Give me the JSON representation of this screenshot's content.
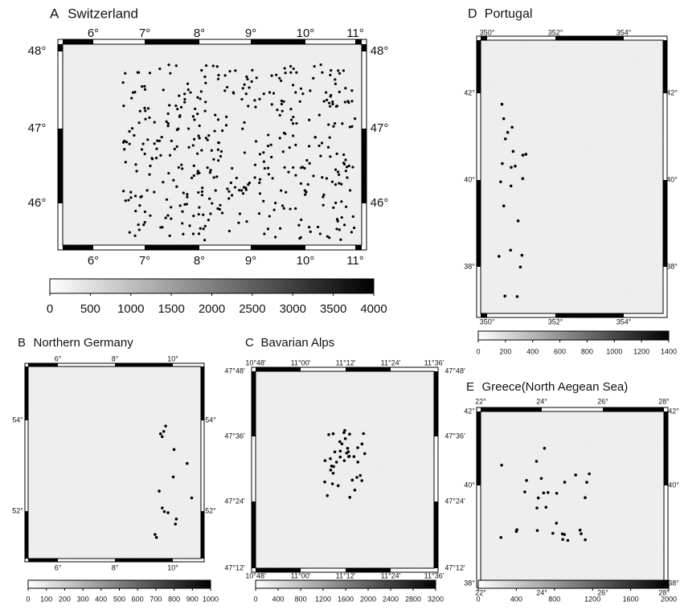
{
  "panels": [
    {
      "label": "A",
      "title": "Switzerland",
      "xticks": [
        "6°",
        "7°",
        "8°",
        "9°",
        "10°",
        "11°"
      ],
      "yticks": [
        "48°",
        "47°",
        "46°"
      ],
      "colorbar": [
        0,
        500,
        1000,
        1500,
        2000,
        2500,
        3000,
        3500,
        4000
      ]
    },
    {
      "label": "D",
      "title": "Portugal",
      "xticks": [
        "350°",
        "352°",
        "354°"
      ],
      "yticks": [
        "42°",
        "40°",
        "38°"
      ],
      "colorbar": [
        0,
        200,
        400,
        600,
        800,
        1000,
        1200,
        1400
      ]
    },
    {
      "label": "B",
      "title": "Northern Germany",
      "xticks": [
        "6°",
        "8°",
        "10°"
      ],
      "yticks": [
        "54°",
        "52°"
      ],
      "colorbar": [
        0,
        100,
        200,
        300,
        400,
        500,
        600,
        700,
        800,
        900,
        1000
      ]
    },
    {
      "label": "C",
      "title": "Bavarian Alps",
      "xticks": [
        "10°48'",
        "11°00'",
        "11°12'",
        "11°24'",
        "11°36'"
      ],
      "yticks": [
        "47°48'",
        "47°36'",
        "47°24'",
        "47°12'"
      ],
      "colorbar": [
        0,
        400,
        800,
        1200,
        1600,
        2000,
        2400,
        2800,
        3200
      ]
    },
    {
      "label": "E",
      "title": "Greece(North Aegean Sea)",
      "xticks": [
        "22°",
        "24°",
        "26°",
        "28°"
      ],
      "yticks": [
        "42°",
        "40°",
        "38°"
      ],
      "colorbar": [
        0,
        400,
        800,
        1200,
        1600,
        2000
      ]
    }
  ]
}
